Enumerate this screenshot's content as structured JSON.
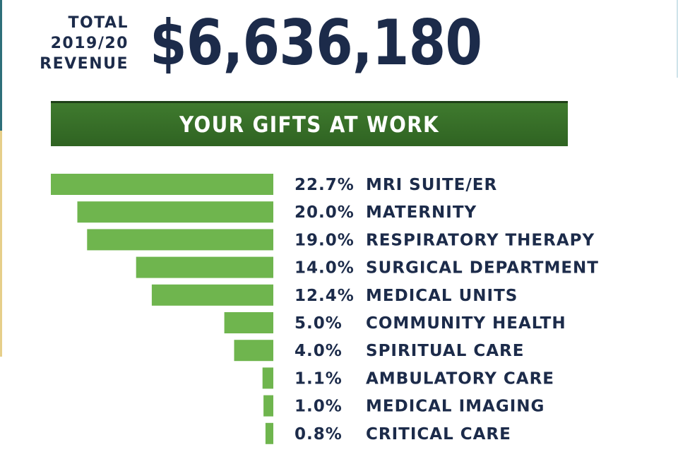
{
  "header": {
    "label_lines": [
      "TOTAL",
      "2019/20",
      "REVENUE"
    ],
    "amount": "$6,636,180"
  },
  "banner": {
    "title": "YOUR GIFTS AT WORK"
  },
  "colors": {
    "navy": "#1c2b4a",
    "bar_green": "#6fb54e",
    "banner_green": "#3a7229"
  },
  "chart_data": {
    "type": "bar",
    "orientation": "horizontal",
    "title": "YOUR GIFTS AT WORK",
    "unit": "%",
    "categories": [
      "MRI SUITE/ER",
      "MATERNITY",
      "RESPIRATORY THERAPY",
      "SURGICAL DEPARTMENT",
      "MEDICAL UNITS",
      "COMMUNITY HEALTH",
      "SPIRITUAL CARE",
      "AMBULATORY CARE",
      "MEDICAL IMAGING",
      "CRITICAL CARE"
    ],
    "values": [
      22.7,
      20.0,
      19.0,
      14.0,
      12.4,
      5.0,
      4.0,
      1.1,
      1.0,
      0.8
    ],
    "value_labels": [
      "22.7%",
      "20.0%",
      "19.0%",
      "14.0%",
      "12.4%",
      "5.0%",
      "4.0%",
      "1.1%",
      "1.0%",
      "0.8%"
    ],
    "grid": false,
    "legend": "none"
  }
}
